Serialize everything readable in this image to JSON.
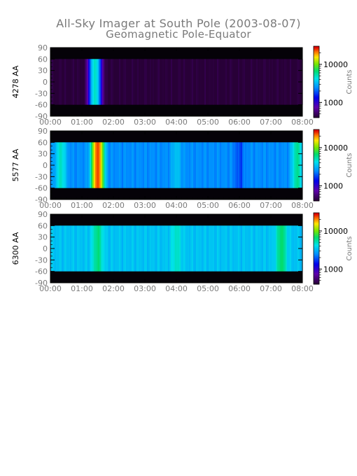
{
  "page": {
    "title": "All-Sky Imager at South Pole (2003-08-07)",
    "subtitle": "Geomagnetic Pole-Equator"
  },
  "colors": {
    "text": "#7a7a7a",
    "axis": "#000000",
    "mask": "#050208"
  },
  "chart_data": [
    {
      "type": "heatmap",
      "ylabel": "4278 AA",
      "x_ticks": [
        "00:00",
        "01:00",
        "02:00",
        "03:00",
        "04:00",
        "05:00",
        "06:00",
        "07:00",
        "08:00"
      ],
      "y_ticks": [
        "90",
        "60",
        "30",
        "0",
        "-30",
        "-60",
        "-90"
      ],
      "xlim": [
        "00:00",
        "08:00"
      ],
      "ylim": [
        -90,
        90
      ],
      "colorbar": {
        "label": "Counts",
        "ticks": [
          "10000",
          "1000"
        ],
        "scale": "log",
        "range": [
          400,
          30000
        ]
      },
      "data_valid_range": [
        -60,
        60
      ],
      "background_counts": 400,
      "features": [
        {
          "time": "01:25",
          "counts": 5000
        }
      ]
    },
    {
      "type": "heatmap",
      "ylabel": "5577 AA",
      "x_ticks": [
        "00:00",
        "01:00",
        "02:00",
        "03:00",
        "04:00",
        "05:00",
        "06:00",
        "07:00",
        "08:00"
      ],
      "y_ticks": [
        "90",
        "60",
        "30",
        "0",
        "-30",
        "-60",
        "-90"
      ],
      "xlim": [
        "00:00",
        "08:00"
      ],
      "ylim": [
        -90,
        90
      ],
      "colorbar": {
        "label": "Counts",
        "ticks": [
          "10000",
          "1000"
        ],
        "scale": "log",
        "range": [
          400,
          30000
        ]
      },
      "data_valid_range": [
        -60,
        60
      ],
      "background_counts": 2500,
      "features": [
        {
          "time": "00:20",
          "counts": 5000
        },
        {
          "time": "01:30",
          "counts": 25000
        },
        {
          "time": "04:00",
          "counts": 3500
        },
        {
          "time": "06:00",
          "counts": 1800
        },
        {
          "time": "07:50",
          "counts": 6000
        }
      ]
    },
    {
      "type": "heatmap",
      "ylabel": "6300 AA",
      "x_ticks": [
        "00:00",
        "01:00",
        "02:00",
        "03:00",
        "04:00",
        "05:00",
        "06:00",
        "07:00",
        "08:00"
      ],
      "y_ticks": [
        "90",
        "60",
        "30",
        "0",
        "-30",
        "-60",
        "-90"
      ],
      "xlim": [
        "00:00",
        "08:00"
      ],
      "ylim": [
        -90,
        90
      ],
      "colorbar": {
        "label": "Counts",
        "ticks": [
          "10000",
          "1000"
        ],
        "scale": "log",
        "range": [
          400,
          30000
        ]
      },
      "data_valid_range": [
        -60,
        60
      ],
      "background_counts": 3500,
      "features": [
        {
          "time": "01:30",
          "counts": 6500
        },
        {
          "time": "04:00",
          "counts": 5000
        },
        {
          "time": "07:20",
          "counts": 7000
        }
      ]
    }
  ]
}
